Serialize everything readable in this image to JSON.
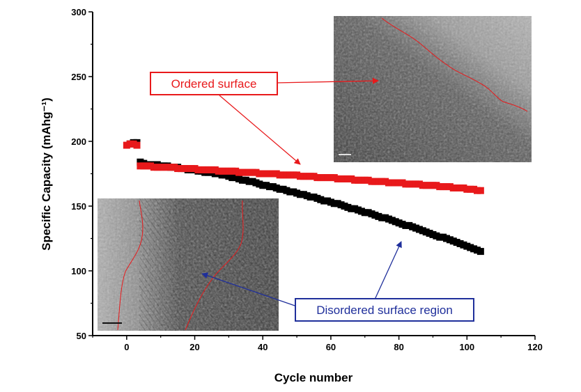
{
  "chart_data": {
    "type": "scatter",
    "xlabel": "Cycle number",
    "ylabel": "Specific Capacity (mAhg⁻¹)",
    "xlim": [
      -10,
      120
    ],
    "ylim": [
      50,
      300
    ],
    "xticks": [
      0,
      20,
      40,
      60,
      80,
      100,
      120
    ],
    "yticks": [
      50,
      100,
      150,
      200,
      250,
      300
    ],
    "grid": false,
    "series": [
      {
        "color": "#000000",
        "marker": "square",
        "x": [
          1,
          2,
          3,
          4,
          5,
          6,
          7,
          8,
          9,
          10,
          11,
          12,
          13,
          14,
          15,
          16,
          17,
          18,
          19,
          20,
          21,
          22,
          23,
          24,
          25,
          26,
          27,
          28,
          29,
          30,
          31,
          32,
          33,
          34,
          35,
          36,
          37,
          38,
          39,
          40,
          41,
          42,
          43,
          44,
          45,
          46,
          47,
          48,
          49,
          50,
          51,
          52,
          53,
          54,
          55,
          56,
          57,
          58,
          59,
          60,
          61,
          62,
          63,
          64,
          65,
          66,
          67,
          68,
          69,
          70,
          71,
          72,
          73,
          74,
          75,
          76,
          77,
          78,
          79,
          80,
          81,
          82,
          83,
          84,
          85,
          86,
          87,
          88,
          89,
          90,
          91,
          92,
          93,
          94,
          95,
          96,
          97,
          98,
          99,
          100,
          101,
          102,
          103,
          104
        ],
        "y": [
          198,
          199,
          199,
          184,
          183,
          182,
          182,
          182,
          182,
          181,
          181,
          181,
          180,
          180,
          180,
          179,
          179,
          178,
          178,
          178,
          177,
          177,
          176,
          176,
          176,
          175,
          175,
          174,
          174,
          173,
          172,
          172,
          171,
          170,
          170,
          169,
          169,
          168,
          167,
          166,
          166,
          165,
          165,
          164,
          163,
          163,
          162,
          161,
          161,
          160,
          159,
          159,
          158,
          157,
          157,
          156,
          155,
          154,
          154,
          153,
          152,
          152,
          151,
          150,
          149,
          148,
          148,
          147,
          146,
          145,
          145,
          144,
          143,
          142,
          141,
          141,
          140,
          139,
          138,
          137,
          136,
          135,
          135,
          134,
          133,
          132,
          131,
          130,
          129,
          128,
          127,
          126,
          126,
          125,
          124,
          123,
          122,
          121,
          120,
          119,
          118,
          117,
          116,
          115
        ]
      },
      {
        "color": "#e8191b",
        "marker": "square",
        "x": [
          0,
          1,
          2,
          3,
          4,
          5,
          6,
          7,
          8,
          9,
          10,
          11,
          12,
          13,
          14,
          15,
          16,
          17,
          18,
          19,
          20,
          21,
          22,
          23,
          24,
          25,
          26,
          27,
          28,
          29,
          30,
          31,
          32,
          33,
          34,
          35,
          36,
          37,
          38,
          39,
          40,
          41,
          42,
          43,
          44,
          45,
          46,
          47,
          48,
          49,
          50,
          51,
          52,
          53,
          54,
          55,
          56,
          57,
          58,
          59,
          60,
          61,
          62,
          63,
          64,
          65,
          66,
          67,
          68,
          69,
          70,
          71,
          72,
          73,
          74,
          75,
          76,
          77,
          78,
          79,
          80,
          81,
          82,
          83,
          84,
          85,
          86,
          87,
          88,
          89,
          90,
          91,
          92,
          93,
          94,
          95,
          96,
          97,
          98,
          99,
          100,
          101,
          102,
          103,
          104
        ],
        "y": [
          197,
          198,
          198,
          197,
          181,
          181,
          181,
          181,
          180,
          180,
          180,
          180,
          180,
          180,
          180,
          179,
          179,
          179,
          179,
          179,
          179,
          178,
          178,
          178,
          178,
          178,
          178,
          177,
          177,
          177,
          177,
          177,
          177,
          176,
          176,
          176,
          176,
          176,
          176,
          175,
          175,
          175,
          175,
          175,
          175,
          174,
          174,
          174,
          174,
          174,
          174,
          173,
          173,
          173,
          173,
          173,
          172,
          172,
          172,
          172,
          172,
          172,
          171,
          171,
          171,
          171,
          171,
          170,
          170,
          170,
          170,
          170,
          169,
          169,
          169,
          169,
          169,
          168,
          168,
          168,
          168,
          168,
          167,
          167,
          167,
          167,
          167,
          166,
          166,
          166,
          166,
          166,
          165,
          165,
          165,
          165,
          164,
          164,
          164,
          164,
          163,
          163,
          163,
          162,
          162
        ]
      }
    ],
    "annotations": [
      {
        "text": "Ordered surface",
        "color": "#e8191b"
      },
      {
        "text": "Disordered surface region",
        "color": "#1f2f9b"
      }
    ]
  }
}
